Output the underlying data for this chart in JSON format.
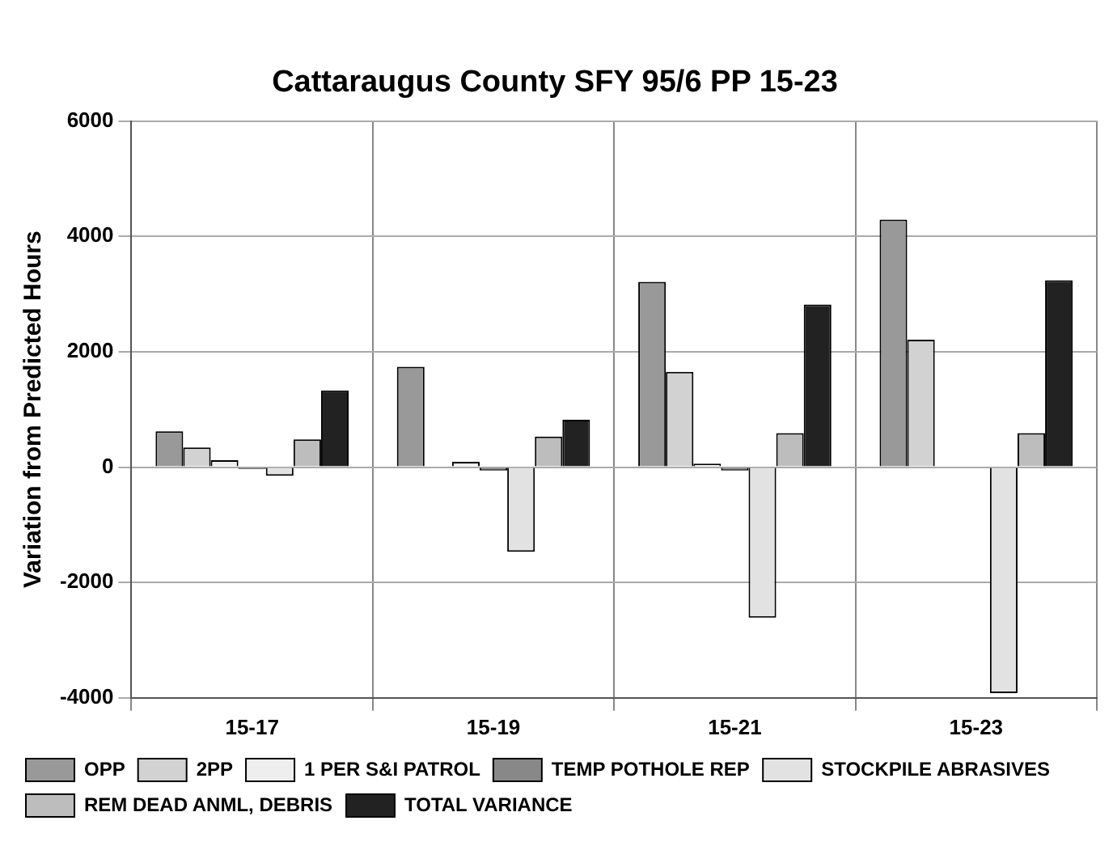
{
  "chart_data": {
    "type": "bar",
    "title": "Cattaraugus County SFY 95/6 PP 15-23",
    "ylabel": "Variation from Predicted Hours",
    "categories": [
      "15-17",
      "15-19",
      "15-21",
      "15-23"
    ],
    "series": [
      {
        "name": "OPP",
        "color": "#999999",
        "values": [
          620,
          1740,
          3210,
          4290
        ]
      },
      {
        "name": "2PP",
        "color": "#d2d2d2",
        "values": [
          340,
          0,
          1650,
          2210
        ]
      },
      {
        "name": "1 PER S&I PATROL",
        "color": "#eeeeee",
        "values": [
          120,
          90,
          60,
          0
        ]
      },
      {
        "name": "TEMP POTHOLE REP",
        "color": "#888888",
        "values": [
          -30,
          -60,
          -60,
          0
        ]
      },
      {
        "name": "STOCKPILE ABRASIVES",
        "color": "#e2e2e2",
        "values": [
          -150,
          -1470,
          -2610,
          -3920
        ]
      },
      {
        "name": "REM DEAD ANML, DEBRIS",
        "color": "#bdbdbd",
        "values": [
          480,
          530,
          590,
          590
        ]
      },
      {
        "name": "TOTAL VARIANCE",
        "color": "#222222",
        "values": [
          1330,
          820,
          2820,
          3240
        ]
      }
    ],
    "ylim": [
      -4000,
      6000
    ],
    "yticks": [
      -4000,
      -2000,
      0,
      2000,
      4000,
      6000
    ],
    "grid": true,
    "legend": "bottom"
  }
}
